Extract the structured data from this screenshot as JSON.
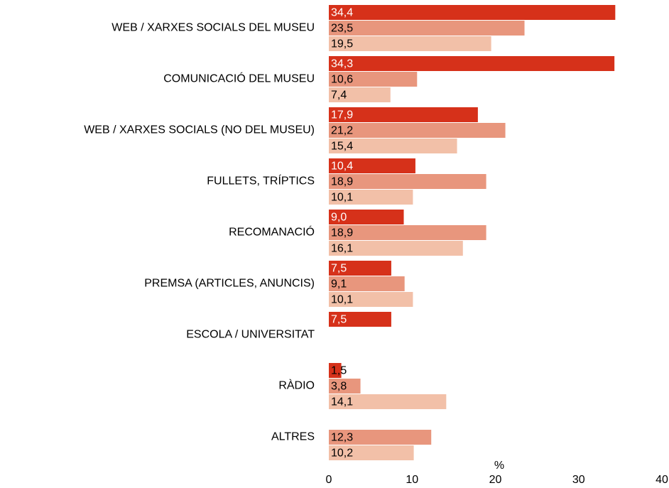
{
  "chart_data": {
    "type": "bar",
    "orientation": "horizontal",
    "categories": [
      "WEB / XARXES SOCIALS DEL MUSEU",
      "COMUNICACIÓ DEL MUSEU",
      "WEB / XARXES SOCIALS (NO DEL MUSEU)",
      "FULLETS, TRÍPTICS",
      "RECOMANACIÓ",
      "PREMSA (ARTICLES, ANUNCIS)",
      "ESCOLA / UNIVERSITAT",
      "RÀDIO",
      "ALTRES"
    ],
    "series": [
      {
        "color": "#d6311a",
        "values": [
          34.4,
          34.3,
          17.9,
          10.4,
          9.0,
          7.5,
          7.5,
          1.5,
          null
        ],
        "value_labels": [
          "34,4",
          "34,3",
          "17,9",
          "10,4",
          "9,0",
          "7,5",
          "7,5",
          "1,5",
          null
        ]
      },
      {
        "color": "#e8967d",
        "values": [
          23.5,
          10.6,
          21.2,
          18.9,
          18.9,
          9.1,
          null,
          3.8,
          12.3
        ],
        "value_labels": [
          "23,5",
          "10,6",
          "21,2",
          "18,9",
          "18,9",
          "9,1",
          null,
          "3,8",
          "12,3"
        ]
      },
      {
        "color": "#f2c0a8",
        "values": [
          19.5,
          7.4,
          15.4,
          10.1,
          16.1,
          10.1,
          null,
          14.1,
          10.2
        ],
        "value_labels": [
          "19,5",
          "7,4",
          "15,4",
          "10,1",
          "16,1",
          "10,1",
          null,
          "14,1",
          "10,2"
        ]
      }
    ],
    "xlabel": "%",
    "xlim": [
      0,
      40
    ],
    "xticks": [
      0,
      10,
      20,
      30,
      40
    ],
    "grid": false
  }
}
